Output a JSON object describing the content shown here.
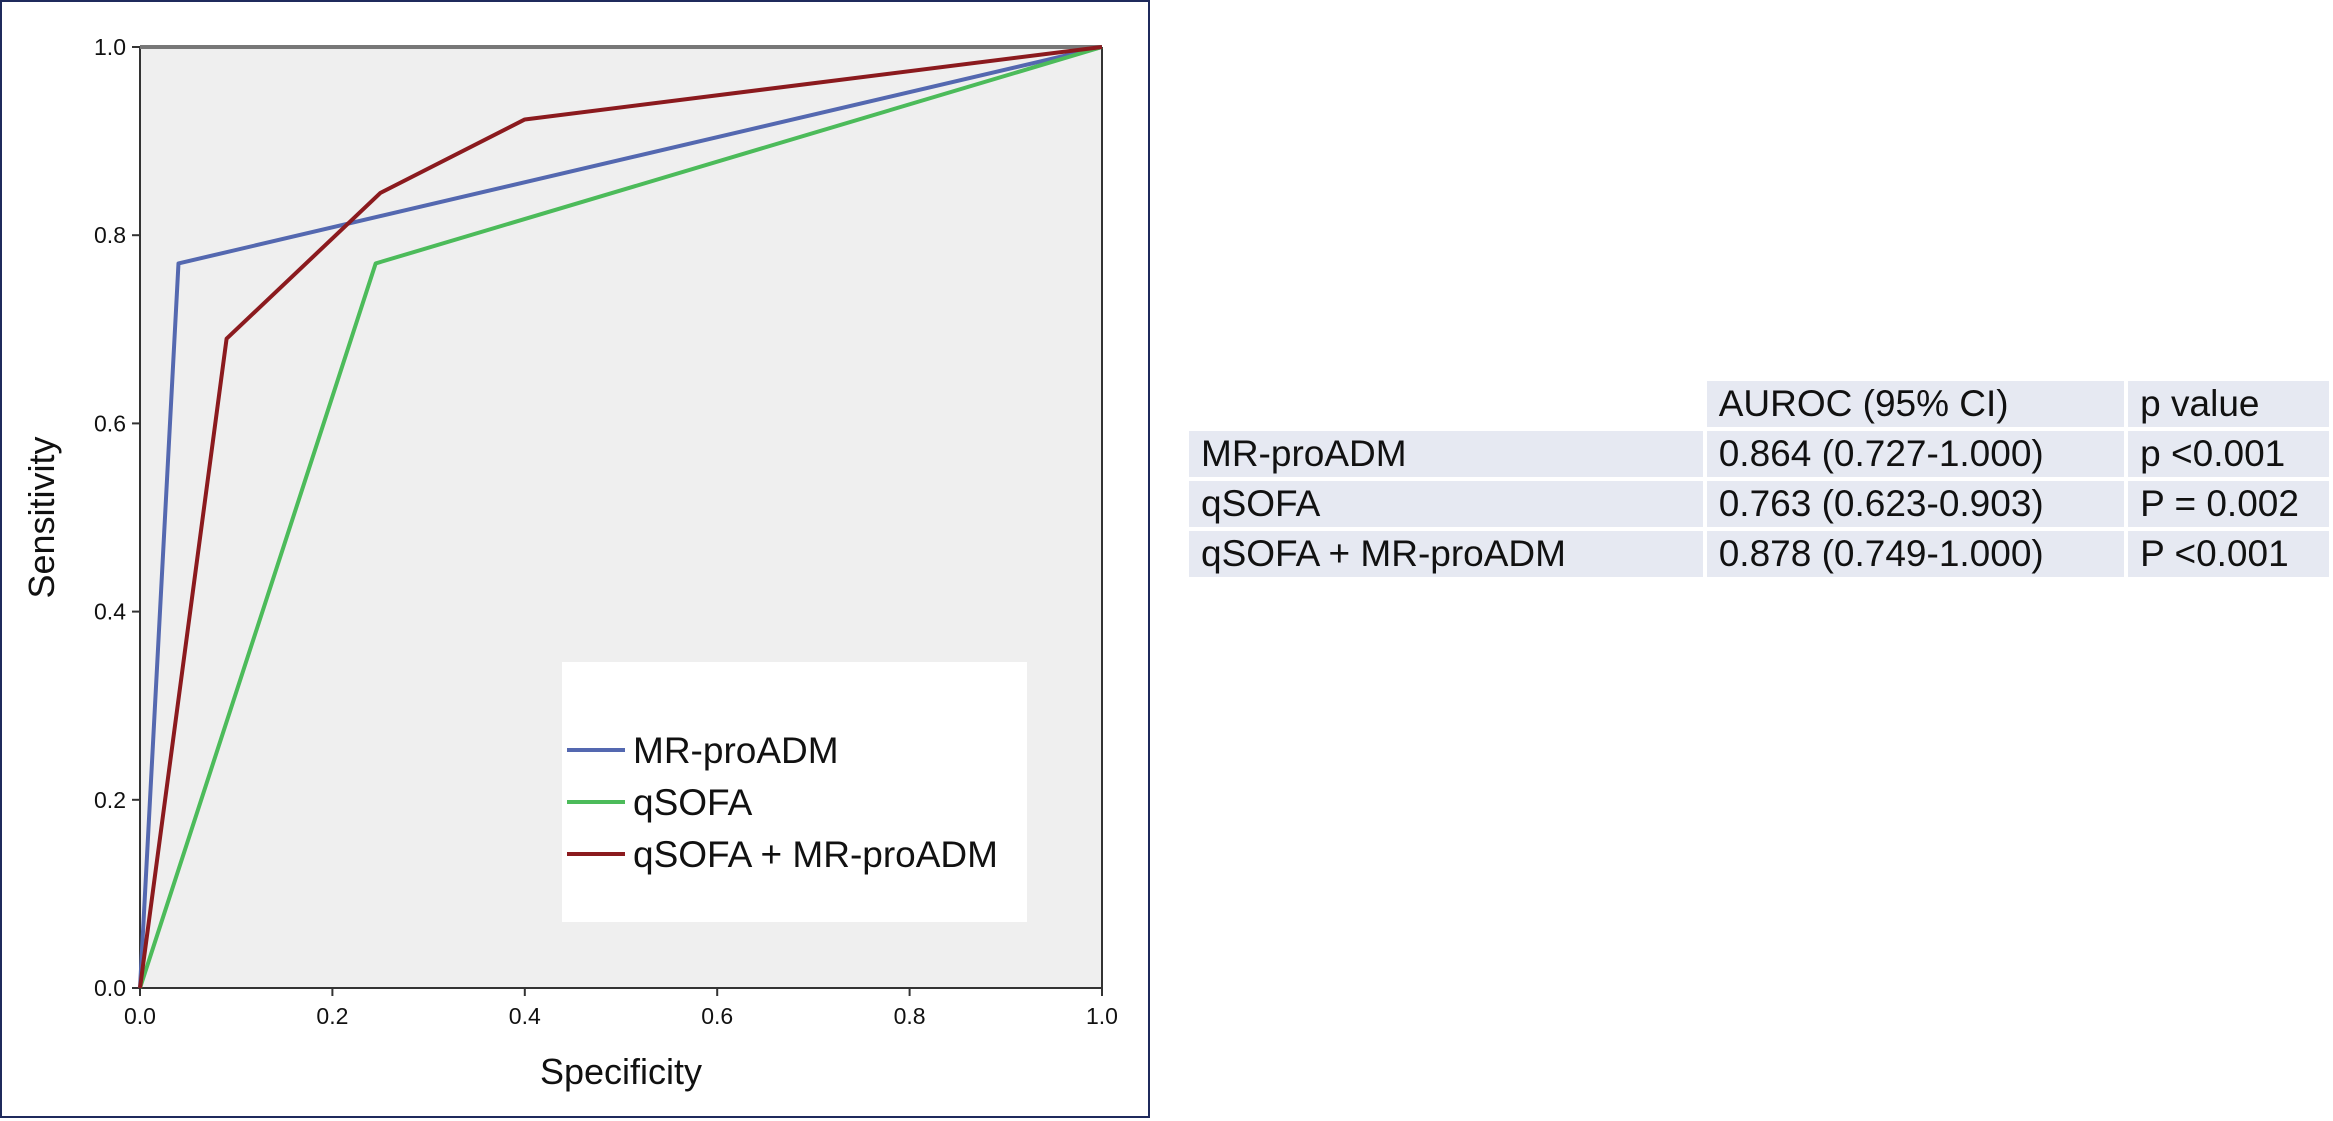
{
  "chart_data": {
    "type": "line",
    "xlabel": "Specificity",
    "ylabel": "Sensitivity",
    "xlim": [
      0,
      1
    ],
    "ylim": [
      0,
      1
    ],
    "xticks": [
      "0.0",
      "0.2",
      "0.4",
      "0.6",
      "0.8",
      "1.0"
    ],
    "yticks": [
      "0.0",
      "0.2",
      "0.4",
      "0.6",
      "0.8",
      "1.0"
    ],
    "grid": false,
    "legend_position": "bottom-right",
    "series": [
      {
        "name": "MR-proADM",
        "color": "#5468b0",
        "x": [
          0.0,
          0.04,
          1.0
        ],
        "y": [
          0.0,
          0.77,
          1.0
        ]
      },
      {
        "name": "qSOFA",
        "color": "#4cbb5a",
        "x": [
          0.0,
          0.245,
          1.0
        ],
        "y": [
          0.0,
          0.77,
          1.0
        ]
      },
      {
        "name": "qSOFA + MR-proADM",
        "color": "#8b1a1e",
        "x": [
          0.0,
          0.09,
          0.25,
          0.4,
          1.0
        ],
        "y": [
          0.0,
          0.69,
          0.845,
          0.923,
          1.0
        ]
      }
    ],
    "reference_line": {
      "x": [
        0,
        1
      ],
      "y": [
        1,
        1
      ],
      "color": "#777777"
    }
  },
  "table": {
    "headers": [
      "",
      "AUROC (95% CI)",
      "p value"
    ],
    "rows": [
      [
        "MR-proADM",
        "0.864 (0.727-1.000)",
        "p <0.001"
      ],
      [
        "qSOFA",
        "0.763 (0.623-0.903)",
        "P = 0.002"
      ],
      [
        "qSOFA + MR-proADM",
        "0.878 (0.749-1.000)",
        "P <0.001"
      ]
    ]
  }
}
